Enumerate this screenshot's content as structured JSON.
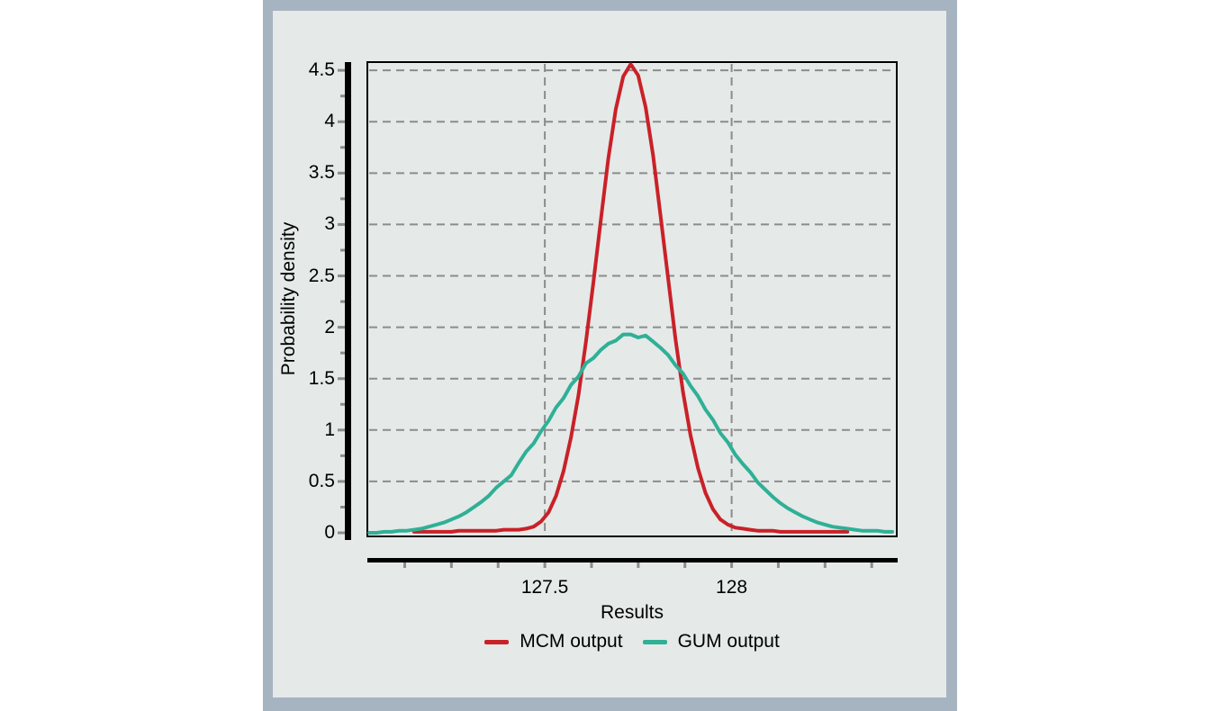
{
  "window": {
    "background_color": "#ffffff"
  },
  "panel": {
    "frame_color": "#a6b3c1",
    "background_color": "#e5e9e8"
  },
  "chart_data": {
    "type": "line",
    "title": "",
    "xlabel": "Results",
    "ylabel": "Probability density",
    "xlim": [
      127.025,
      128.442
    ],
    "ylim": [
      -0.035,
      4.58
    ],
    "grid": true,
    "grid_color": "#8c8c8c",
    "axis_color": "#000000",
    "tick_color": "#8c8c8c",
    "legend_position": "bottom",
    "x_axis": {
      "label": "Results",
      "tick_values": [
        127.5,
        128
      ],
      "tick_labels": [
        "127.5",
        "128"
      ],
      "minor_tick_values": [
        127.125,
        127.25,
        127.375,
        127.5,
        127.625,
        127.75,
        127.875,
        128.0,
        128.125,
        128.25,
        128.375
      ],
      "gridline_values": [
        127.5,
        128
      ]
    },
    "y_axis": {
      "label": "Probability density",
      "tick_values": [
        0,
        0.5,
        1,
        1.5,
        2,
        2.5,
        3,
        3.5,
        4,
        4.5
      ],
      "tick_labels": [
        "0",
        "0.5",
        "1",
        "1.5",
        "2",
        "2.5",
        "3",
        "3.5",
        "4",
        "4.5"
      ],
      "minor_tick_values": [
        0.25,
        0.75,
        1.25,
        1.75,
        2.25,
        2.75,
        3.25,
        3.75,
        4.25
      ],
      "gridline_values": [
        0.5,
        1,
        1.5,
        2,
        2.5,
        3,
        3.5,
        4,
        4.5
      ]
    },
    "series": [
      {
        "name": "MCM output",
        "color": "#c92128",
        "line_width": 4,
        "points": [
          [
            127.15,
            0.01
          ],
          [
            127.17,
            0.01
          ],
          [
            127.19,
            0.01
          ],
          [
            127.21,
            0.01
          ],
          [
            127.23,
            0.01
          ],
          [
            127.25,
            0.01
          ],
          [
            127.27,
            0.02
          ],
          [
            127.29,
            0.02
          ],
          [
            127.31,
            0.02
          ],
          [
            127.33,
            0.02
          ],
          [
            127.35,
            0.02
          ],
          [
            127.37,
            0.02
          ],
          [
            127.39,
            0.03
          ],
          [
            127.41,
            0.03
          ],
          [
            127.43,
            0.03
          ],
          [
            127.45,
            0.04
          ],
          [
            127.47,
            0.06
          ],
          [
            127.49,
            0.11
          ],
          [
            127.51,
            0.2
          ],
          [
            127.53,
            0.36
          ],
          [
            127.55,
            0.6
          ],
          [
            127.57,
            0.93
          ],
          [
            127.59,
            1.34
          ],
          [
            127.61,
            1.86
          ],
          [
            127.63,
            2.44
          ],
          [
            127.65,
            3.05
          ],
          [
            127.67,
            3.64
          ],
          [
            127.69,
            4.12
          ],
          [
            127.71,
            4.44
          ],
          [
            127.73,
            4.56
          ],
          [
            127.75,
            4.45
          ],
          [
            127.77,
            4.14
          ],
          [
            127.79,
            3.67
          ],
          [
            127.81,
            3.08
          ],
          [
            127.83,
            2.48
          ],
          [
            127.85,
            1.88
          ],
          [
            127.87,
            1.37
          ],
          [
            127.89,
            0.95
          ],
          [
            127.91,
            0.63
          ],
          [
            127.93,
            0.39
          ],
          [
            127.95,
            0.23
          ],
          [
            127.97,
            0.13
          ],
          [
            127.99,
            0.08
          ],
          [
            128.01,
            0.05
          ],
          [
            128.03,
            0.04
          ],
          [
            128.05,
            0.03
          ],
          [
            128.07,
            0.02
          ],
          [
            128.09,
            0.02
          ],
          [
            128.11,
            0.02
          ],
          [
            128.13,
            0.01
          ],
          [
            128.15,
            0.01
          ],
          [
            128.17,
            0.01
          ],
          [
            128.19,
            0.01
          ],
          [
            128.21,
            0.01
          ],
          [
            128.23,
            0.01
          ],
          [
            128.25,
            0.01
          ],
          [
            128.27,
            0.01
          ],
          [
            128.29,
            0.01
          ],
          [
            128.31,
            0.01
          ]
        ]
      },
      {
        "name": "GUM output",
        "color": "#2fb096",
        "line_width": 4,
        "points": [
          [
            127.03,
            0.0
          ],
          [
            127.05,
            0.0
          ],
          [
            127.07,
            0.01
          ],
          [
            127.09,
            0.01
          ],
          [
            127.11,
            0.02
          ],
          [
            127.13,
            0.02
          ],
          [
            127.15,
            0.03
          ],
          [
            127.17,
            0.04
          ],
          [
            127.19,
            0.06
          ],
          [
            127.21,
            0.08
          ],
          [
            127.23,
            0.1
          ],
          [
            127.25,
            0.13
          ],
          [
            127.27,
            0.16
          ],
          [
            127.29,
            0.2
          ],
          [
            127.31,
            0.25
          ],
          [
            127.33,
            0.3
          ],
          [
            127.35,
            0.36
          ],
          [
            127.37,
            0.44
          ],
          [
            127.39,
            0.5
          ],
          [
            127.41,
            0.56
          ],
          [
            127.43,
            0.68
          ],
          [
            127.45,
            0.79
          ],
          [
            127.47,
            0.87
          ],
          [
            127.49,
            0.99
          ],
          [
            127.51,
            1.09
          ],
          [
            127.53,
            1.22
          ],
          [
            127.55,
            1.31
          ],
          [
            127.57,
            1.44
          ],
          [
            127.59,
            1.52
          ],
          [
            127.61,
            1.65
          ],
          [
            127.63,
            1.7
          ],
          [
            127.65,
            1.78
          ],
          [
            127.67,
            1.84
          ],
          [
            127.69,
            1.87
          ],
          [
            127.71,
            1.93
          ],
          [
            127.73,
            1.93
          ],
          [
            127.75,
            1.9
          ],
          [
            127.77,
            1.92
          ],
          [
            127.79,
            1.86
          ],
          [
            127.81,
            1.8
          ],
          [
            127.83,
            1.73
          ],
          [
            127.85,
            1.63
          ],
          [
            127.87,
            1.55
          ],
          [
            127.89,
            1.43
          ],
          [
            127.91,
            1.33
          ],
          [
            127.93,
            1.2
          ],
          [
            127.95,
            1.1
          ],
          [
            127.97,
            0.97
          ],
          [
            127.99,
            0.88
          ],
          [
            128.01,
            0.76
          ],
          [
            128.03,
            0.67
          ],
          [
            128.05,
            0.59
          ],
          [
            128.07,
            0.49
          ],
          [
            128.09,
            0.42
          ],
          [
            128.11,
            0.35
          ],
          [
            128.13,
            0.29
          ],
          [
            128.15,
            0.24
          ],
          [
            128.17,
            0.2
          ],
          [
            128.19,
            0.16
          ],
          [
            128.21,
            0.13
          ],
          [
            128.23,
            0.1
          ],
          [
            128.25,
            0.08
          ],
          [
            128.27,
            0.06
          ],
          [
            128.29,
            0.05
          ],
          [
            128.31,
            0.04
          ],
          [
            128.33,
            0.03
          ],
          [
            128.35,
            0.02
          ],
          [
            128.37,
            0.02
          ],
          [
            128.39,
            0.02
          ],
          [
            128.41,
            0.01
          ],
          [
            128.43,
            0.01
          ]
        ]
      }
    ]
  }
}
